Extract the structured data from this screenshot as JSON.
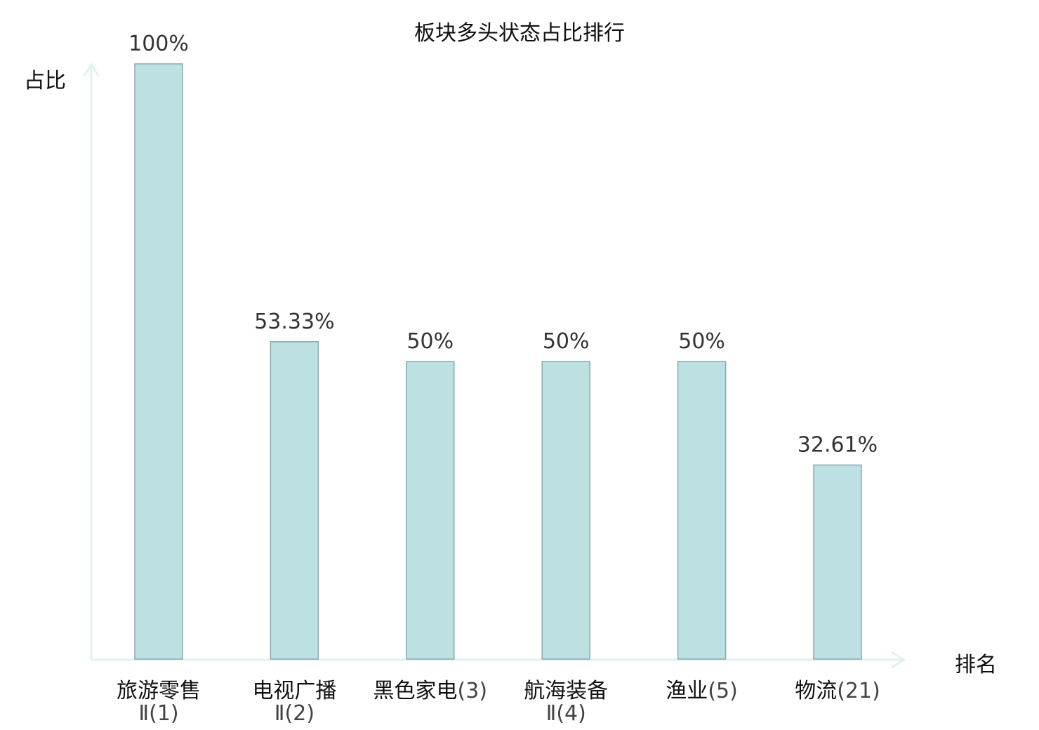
{
  "chart_data": {
    "type": "bar",
    "title": "板块多头状态占比排行",
    "ylabel": "占比",
    "xlabel": "排名",
    "ylim": [
      0,
      100
    ],
    "grid": false,
    "categories": [
      {
        "name": "旅游零售Ⅱ",
        "rank": "(1)",
        "highlight": false
      },
      {
        "name": "电视广播Ⅱ",
        "rank": "(2)",
        "highlight": false
      },
      {
        "name": "黑色家电",
        "rank": "(3)",
        "highlight": false
      },
      {
        "name": "航海装备Ⅱ",
        "rank": "(4)",
        "highlight": false
      },
      {
        "name": "渔业",
        "rank": "(5)",
        "highlight": false
      },
      {
        "name": "物流",
        "rank": "(21)",
        "highlight": true
      }
    ],
    "values": [
      100,
      53.33,
      50,
      50,
      50,
      32.61
    ],
    "value_labels": [
      "100%",
      "53.33%",
      "50%",
      "50%",
      "50%",
      "32.61%"
    ],
    "colors": {
      "bar_fill": "#bde1e3",
      "bar_stroke": "#8aa9ad",
      "axis": "#dff2ef",
      "highlight_text": "#e8000b"
    }
  }
}
